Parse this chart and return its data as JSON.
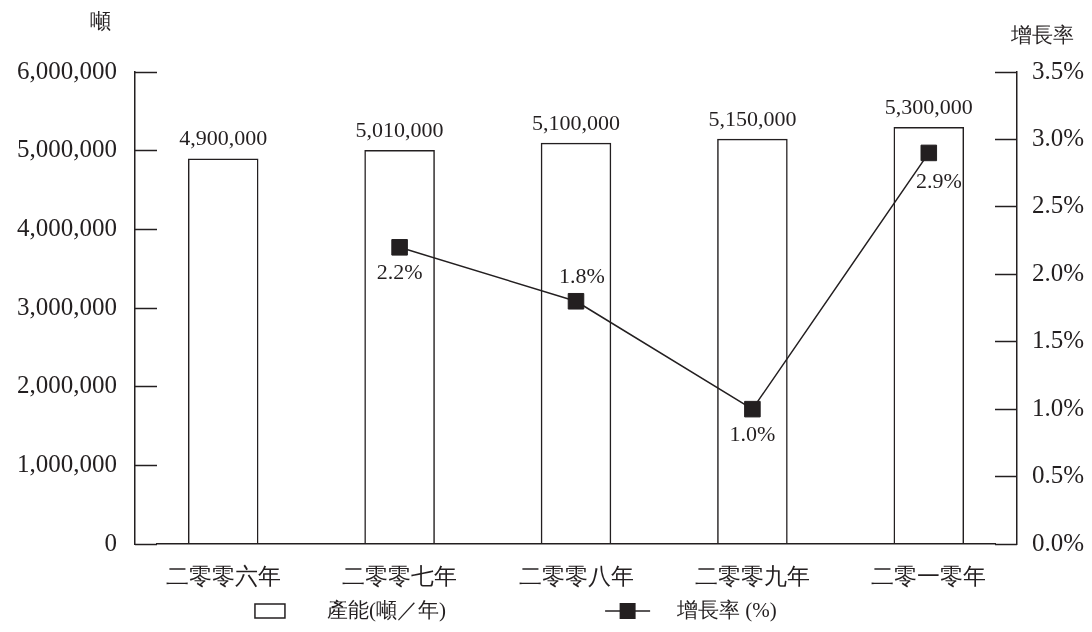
{
  "chart_data": {
    "type": "bar",
    "ylabel": "噸",
    "y2label": "增長率",
    "legend": "bottom",
    "categories": [
      "二零零六年",
      "二零零七年",
      "二零零八年",
      "二零零九年",
      "二零一零年"
    ],
    "series": [
      {
        "name": "產能(噸／年)",
        "color": "#231f20",
        "values": [
          4900000,
          5010000,
          5100000,
          5150000,
          5300000
        ],
        "value_labels": [
          "4,900,000",
          "5,010,000",
          "5,100,000",
          "5,150,000",
          "5,300,000"
        ]
      },
      {
        "name": "增長率 (%)",
        "type": "line",
        "axis": "y2",
        "color": "#231f20",
        "marker": "square",
        "values": [
          null,
          2.2,
          1.8,
          1.0,
          2.9
        ],
        "value_labels": [
          null,
          "2.2%",
          "1.8%",
          "1.0%",
          "2.9%"
        ]
      }
    ],
    "ylim": [
      0,
      6000000
    ],
    "yticks": [
      0,
      {
        "value": 1000000,
        "label": "1,000,000"
      },
      {
        "value": 2000000,
        "label": "2,000,000"
      },
      {
        "value": 3000000,
        "label": "3,000,000"
      },
      {
        "value": 4000000,
        "label": "4,000,000"
      },
      {
        "value": 5000000,
        "label": "5,000,000"
      },
      {
        "value": 6000000,
        "label": "6,000,000"
      }
    ],
    "y2lim": [
      0,
      3.5
    ],
    "y2ticks": [
      {
        "value": 0,
        "label": "0.0%"
      },
      {
        "value": 0.5,
        "label": "0.5%"
      },
      {
        "value": 1,
        "label": "1.0%"
      },
      {
        "value": 1.5,
        "label": "1.5%"
      },
      {
        "value": 2,
        "label": "2.0%"
      },
      {
        "value": 2.5,
        "label": "2.5%"
      },
      {
        "value": 3,
        "label": "3.0%"
      },
      {
        "value": 3.5,
        "label": "3.5%"
      }
    ]
  }
}
